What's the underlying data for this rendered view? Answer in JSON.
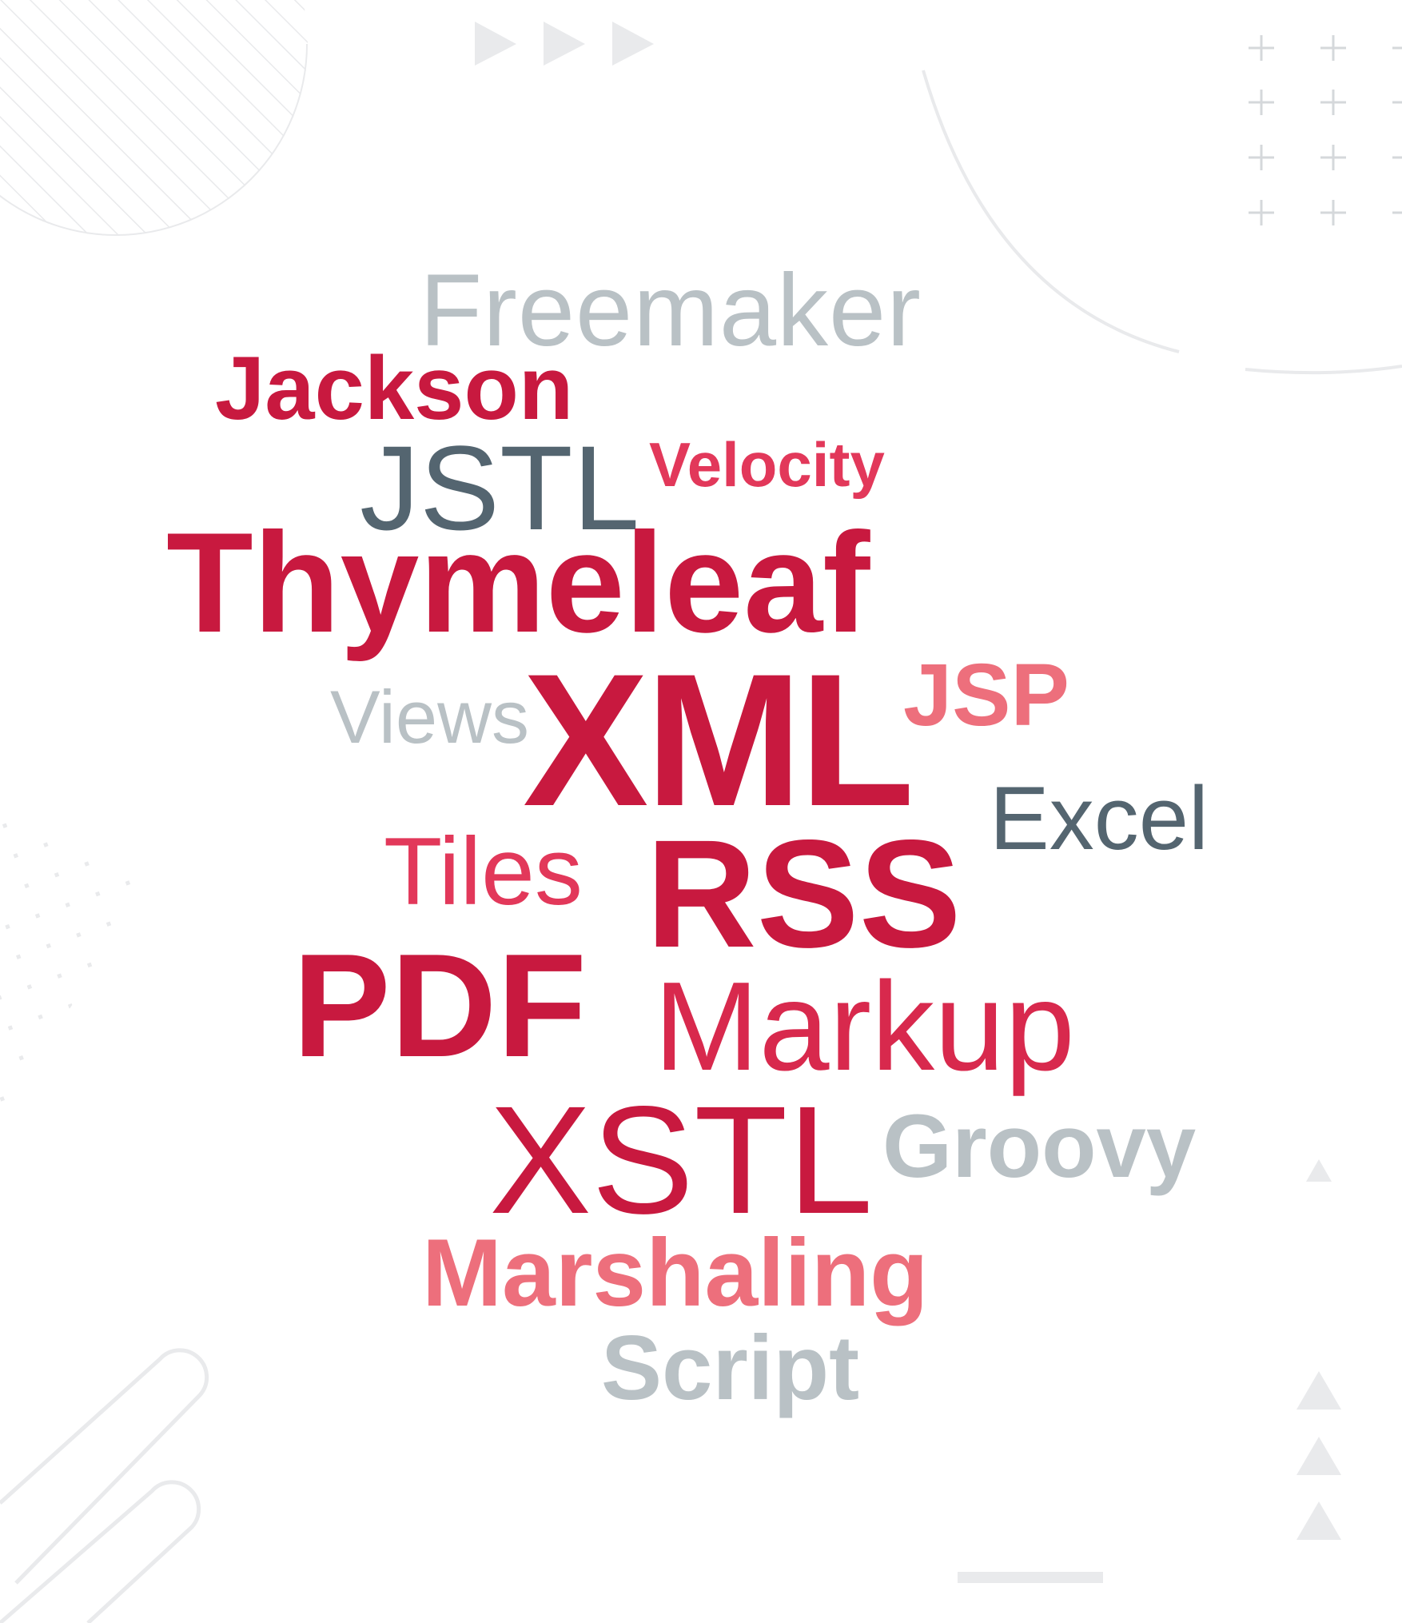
{
  "words": {
    "freemaker": "Freemaker",
    "jackson": "Jackson",
    "jstl": "JSTL",
    "velocity": "Velocity",
    "thymeleaf": "Thymeleaf",
    "views": "Views",
    "xml": "XML",
    "jsp": "JSP",
    "excel": "Excel",
    "tiles": "Tiles",
    "rss": "RSS",
    "pdf": "PDF",
    "markup": "Markup",
    "xstl": "XSTL",
    "groovy": "Groovy",
    "marshaling": "Marshaling",
    "script": "Script"
  },
  "colors": {
    "crimson": "#c8193f",
    "red": "#e2385a",
    "pink": "#ed6f7c",
    "slate": "#546570",
    "light_gray": "#b9c1c5",
    "decor": "#e9eaec"
  }
}
